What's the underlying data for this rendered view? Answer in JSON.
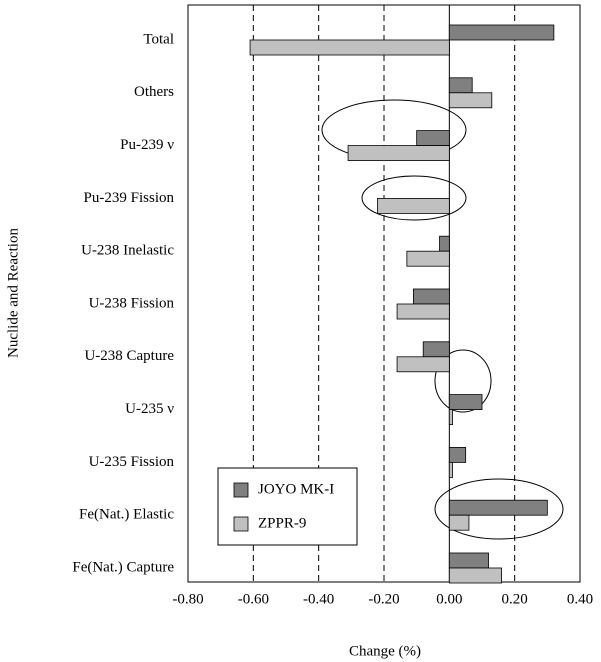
{
  "chart_data": {
    "type": "bar",
    "orientation": "horizontal",
    "xlabel": "Change (%)",
    "ylabel": "Nuclide and Reaction",
    "categories": [
      "Total",
      "Others",
      "Pu-239 ν",
      "Pu-239 Fission",
      "U-238 Inelastic",
      "U-238 Fission",
      "U-238 Capture",
      "U-235 ν",
      "U-235 Fission",
      "Fe(Nat.)  Elastic",
      "Fe(Nat.) Capture"
    ],
    "series": [
      {
        "name": "JOYO MK-I",
        "color": "#808080",
        "values": [
          0.32,
          0.07,
          -0.1,
          0.0,
          -0.03,
          -0.11,
          -0.08,
          0.1,
          0.05,
          0.3,
          0.12
        ]
      },
      {
        "name": "ZPPR-9",
        "color": "#c0c0c0",
        "values": [
          -0.61,
          0.13,
          -0.31,
          -0.22,
          -0.13,
          -0.16,
          -0.16,
          0.01,
          0.01,
          0.06,
          0.16
        ]
      }
    ],
    "xlim": [
      -0.8,
      0.4
    ],
    "xticks": [
      {
        "value": -0.8,
        "label": "-0.80"
      },
      {
        "value": -0.6,
        "label": "-0.60"
      },
      {
        "value": -0.4,
        "label": "-0.40"
      },
      {
        "value": -0.2,
        "label": "-0.20"
      },
      {
        "value": 0,
        "label": "0.00"
      },
      {
        "value": 0.2,
        "label": "0.20"
      },
      {
        "value": 0.4,
        "label": "0.40"
      }
    ],
    "grid": true,
    "legend": "lower left"
  }
}
